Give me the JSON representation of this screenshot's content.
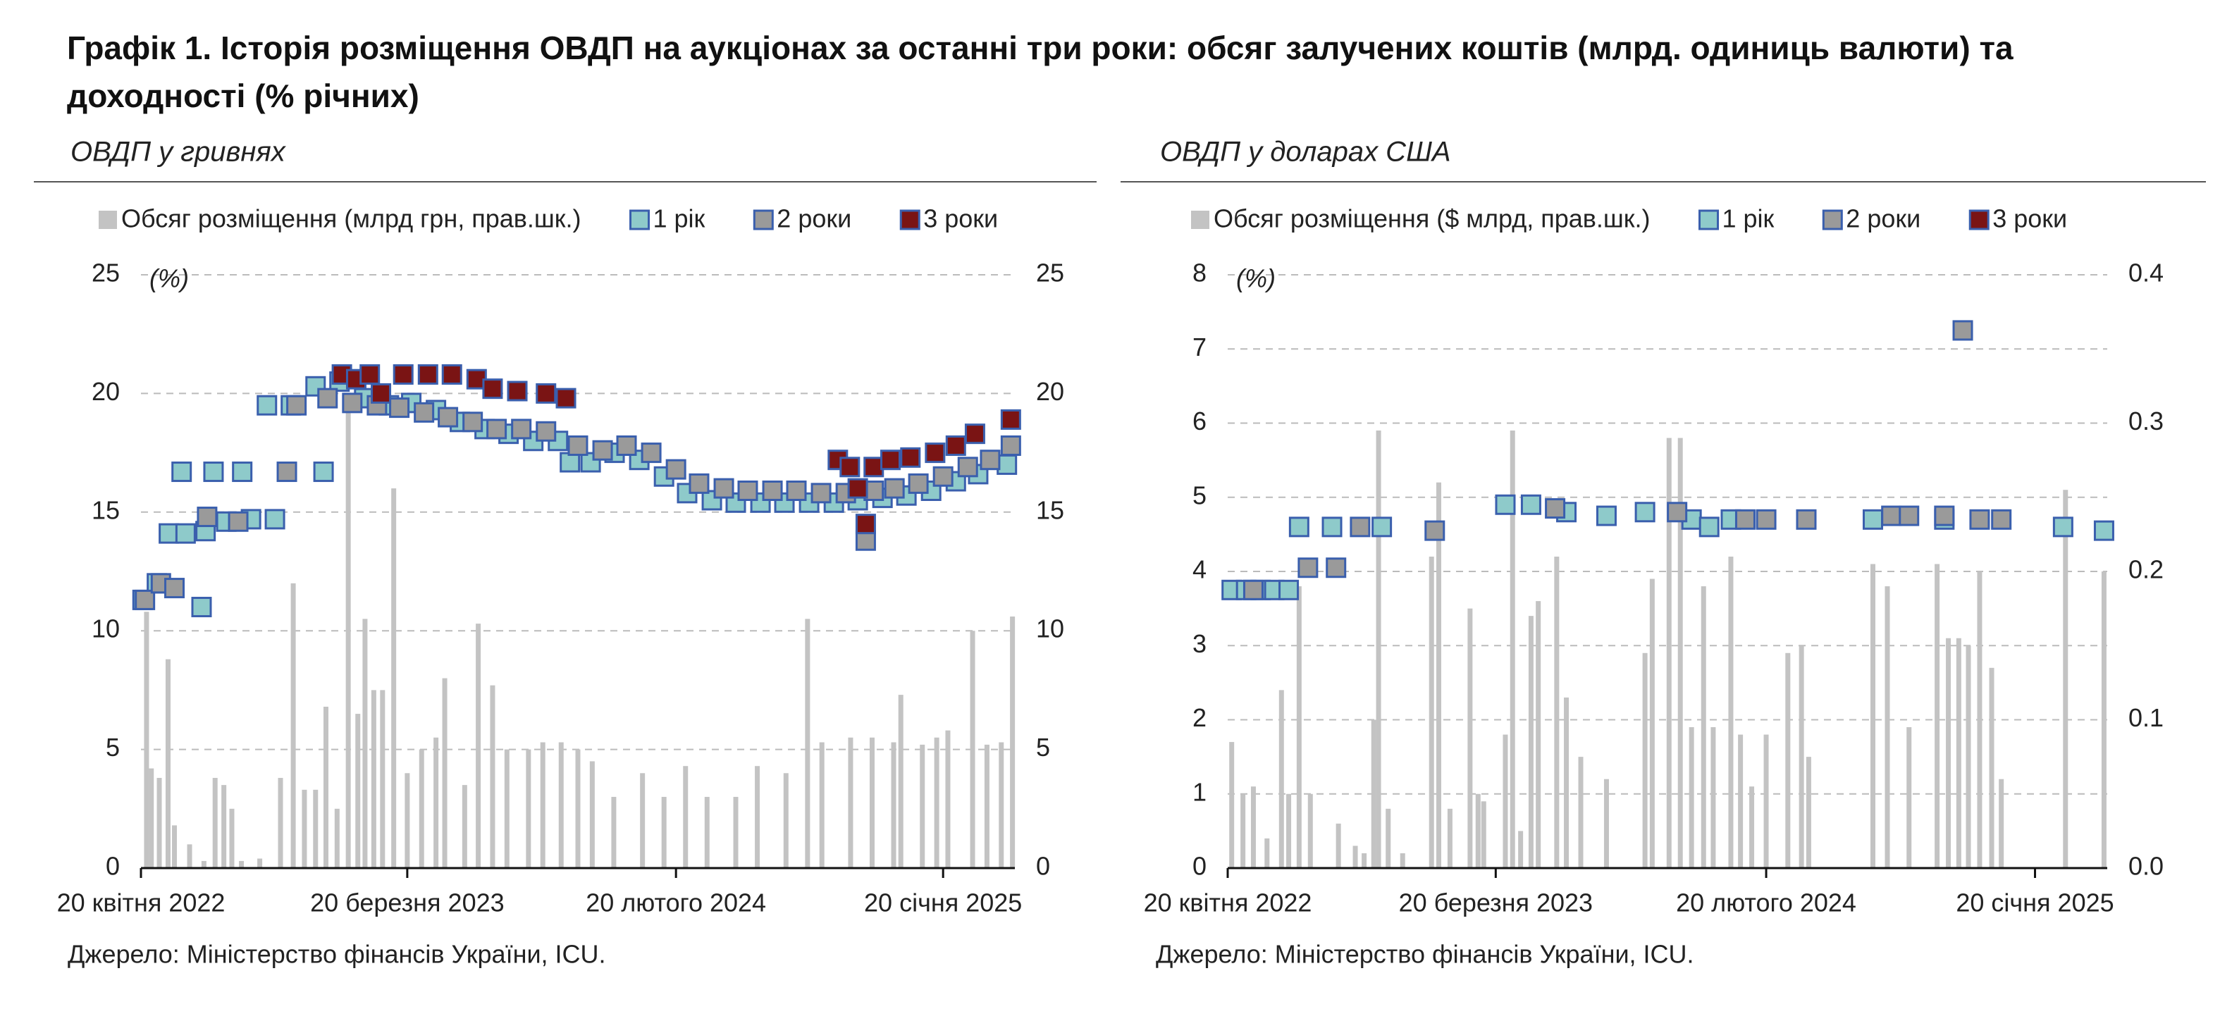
{
  "title": "Графік 1. Історія розміщення ОВДП на аукціонах за останні три роки: обсяг залучених коштів (млрд. одиниць валюти) та доходності (% річних)",
  "chart_data": [
    {
      "type": "combo",
      "subtitle": "ОВДП у гривнях",
      "annotation": "(%)",
      "source": "Джерело: Міністерство фінансів України, ICU.",
      "xlim": [
        "2022-04-20",
        "2025-04-20"
      ],
      "xticks": [
        {
          "value": "2022-04-20",
          "label": "20 квітня 2022"
        },
        {
          "value": "2023-03-20",
          "label": "20 березня 2023"
        },
        {
          "value": "2024-02-20",
          "label": "20 лютого 2024"
        },
        {
          "value": "2025-01-20",
          "label": "20 січня 2025"
        }
      ],
      "ylim": [
        0,
        25
      ],
      "yticks": [
        0,
        5,
        10,
        15,
        20,
        25
      ],
      "y2lim": [
        0,
        25
      ],
      "y2ticks": [
        0,
        5,
        10,
        15,
        20,
        25
      ],
      "grid": true,
      "edgecolor": "#3a5fad",
      "series": [
        {
          "name": "Обсяг розміщення (млрд грн, прав.шк.)",
          "type": "bar",
          "axis": "y2",
          "color": "#c3c3c3",
          "x": [
            "2022-04-27",
            "2022-05-03",
            "2022-05-13",
            "2022-05-24",
            "2022-06-01",
            "2022-06-20",
            "2022-07-08",
            "2022-07-22",
            "2022-08-02",
            "2022-08-12",
            "2022-08-24",
            "2022-09-16",
            "2022-10-12",
            "2022-10-28",
            "2022-11-11",
            "2022-11-25",
            "2022-12-08",
            "2022-12-22",
            "2023-01-05",
            "2023-01-17",
            "2023-01-26",
            "2023-02-06",
            "2023-02-17",
            "2023-03-03",
            "2023-03-20",
            "2023-04-07",
            "2023-04-25",
            "2023-05-06",
            "2023-05-31",
            "2023-06-17",
            "2023-07-05",
            "2023-07-23",
            "2023-08-19",
            "2023-09-06",
            "2023-09-29",
            "2023-10-20",
            "2023-11-07",
            "2023-12-04",
            "2024-01-09",
            "2024-02-05",
            "2024-03-03",
            "2024-03-30",
            "2024-05-05",
            "2024-06-01",
            "2024-07-07",
            "2024-08-03",
            "2024-08-21",
            "2024-09-26",
            "2024-10-23",
            "2024-11-19",
            "2024-11-28",
            "2024-12-25",
            "2025-01-12",
            "2025-01-26",
            "2025-02-26",
            "2025-03-16",
            "2025-04-03",
            "2025-04-17"
          ],
          "values": [
            10.8,
            4.2,
            3.8,
            8.8,
            1.8,
            1.0,
            0.3,
            3.8,
            3.5,
            2.5,
            0.3,
            0.4,
            3.8,
            12.0,
            3.3,
            3.3,
            6.8,
            2.5,
            20.0,
            6.5,
            10.5,
            7.5,
            7.5,
            16.0,
            4.0,
            5.0,
            5.5,
            8.0,
            3.5,
            10.3,
            7.7,
            5.0,
            5.0,
            5.3,
            5.3,
            5.0,
            4.5,
            3.0,
            4.0,
            3.0,
            4.3,
            3.0,
            3.0,
            4.3,
            4.0,
            10.5,
            5.3,
            5.5,
            5.5,
            5.3,
            7.3,
            5.2,
            5.5,
            5.8,
            10.0,
            5.2,
            5.3,
            10.6
          ]
        },
        {
          "name": "1 рік",
          "type": "scatter",
          "color": "#8ecaca",
          "x": [
            "2022-04-22",
            "2022-05-10",
            "2022-05-25",
            "2022-06-10",
            "2022-06-15",
            "2022-07-05",
            "2022-07-10",
            "2022-07-20",
            "2022-08-05",
            "2022-08-25",
            "2022-09-05",
            "2022-09-25",
            "2022-10-05",
            "2022-10-25",
            "2022-11-25",
            "2022-12-05",
            "2022-12-25",
            "2023-01-25",
            "2023-02-25",
            "2023-03-25",
            "2023-04-25",
            "2023-05-25",
            "2023-06-25",
            "2023-07-25",
            "2023-08-25",
            "2023-09-25",
            "2023-10-10",
            "2023-11-05",
            "2023-12-05",
            "2024-01-05",
            "2024-02-05",
            "2024-03-05",
            "2024-04-05",
            "2024-05-05",
            "2024-06-05",
            "2024-07-05",
            "2024-08-05",
            "2024-09-05",
            "2024-10-05",
            "2024-11-05",
            "2024-12-05",
            "2025-01-05",
            "2025-02-05",
            "2025-03-05",
            "2025-04-10"
          ],
          "values": [
            11.3,
            12.0,
            14.1,
            16.7,
            14.1,
            11.0,
            14.2,
            16.7,
            14.6,
            16.7,
            14.7,
            19.5,
            14.7,
            19.5,
            20.3,
            16.7,
            20.5,
            19.8,
            19.5,
            19.6,
            19.3,
            18.8,
            18.5,
            18.3,
            18.0,
            18.0,
            17.1,
            17.1,
            17.5,
            17.2,
            16.5,
            15.8,
            15.5,
            15.4,
            15.4,
            15.4,
            15.4,
            15.4,
            15.5,
            15.6,
            15.7,
            15.9,
            16.3,
            16.6,
            17.0
          ]
        },
        {
          "name": "2 роки",
          "type": "scatter",
          "color": "#9a9a9a",
          "x": [
            "2022-04-25",
            "2022-05-15",
            "2022-06-01",
            "2022-07-12",
            "2022-08-20",
            "2022-10-20",
            "2022-11-01",
            "2022-12-10",
            "2023-01-10",
            "2023-02-10",
            "2023-03-10",
            "2023-04-10",
            "2023-05-10",
            "2023-06-10",
            "2023-07-10",
            "2023-08-10",
            "2023-09-10",
            "2023-10-20",
            "2023-11-20",
            "2023-12-20",
            "2024-01-20",
            "2024-02-20",
            "2024-03-20",
            "2024-04-20",
            "2024-05-20",
            "2024-06-20",
            "2024-07-20",
            "2024-08-20",
            "2024-09-20",
            "2024-10-15",
            "2024-10-25",
            "2024-11-20",
            "2024-12-20",
            "2025-01-20",
            "2025-02-20",
            "2025-03-20",
            "2025-04-15"
          ],
          "values": [
            11.3,
            12.0,
            11.8,
            14.8,
            14.6,
            16.7,
            19.5,
            19.8,
            19.6,
            19.5,
            19.4,
            19.2,
            19.0,
            18.8,
            18.5,
            18.5,
            18.4,
            17.8,
            17.6,
            17.8,
            17.5,
            16.8,
            16.2,
            16.0,
            15.9,
            15.9,
            15.9,
            15.8,
            15.8,
            13.8,
            15.9,
            16.0,
            16.2,
            16.5,
            16.9,
            17.2,
            17.8
          ]
        },
        {
          "name": "3 роки",
          "type": "scatter",
          "color": "#7a1414",
          "x": [
            "2022-12-28",
            "2023-01-15",
            "2023-02-01",
            "2023-02-15",
            "2023-03-15",
            "2023-04-15",
            "2023-05-15",
            "2023-06-15",
            "2023-07-05",
            "2023-08-05",
            "2023-09-10",
            "2023-10-05",
            "2024-09-10",
            "2024-09-25",
            "2024-10-05",
            "2024-10-15",
            "2024-10-25",
            "2024-11-15",
            "2024-12-10",
            "2025-01-10",
            "2025-02-05",
            "2025-03-01",
            "2025-04-15"
          ],
          "values": [
            20.8,
            20.6,
            20.8,
            20.0,
            20.8,
            20.8,
            20.8,
            20.6,
            20.2,
            20.1,
            20.0,
            19.8,
            17.2,
            16.9,
            16.0,
            14.5,
            16.9,
            17.2,
            17.3,
            17.5,
            17.8,
            18.3,
            18.9
          ]
        }
      ]
    },
    {
      "type": "combo",
      "subtitle": "ОВДП у доларах США",
      "annotation": "(%)",
      "source": "Джерело: Міністерство фінансів України, ICU.",
      "xlim": [
        "2022-04-20",
        "2025-04-20"
      ],
      "xticks": [
        {
          "value": "2022-04-20",
          "label": "20 квітня 2022"
        },
        {
          "value": "2023-03-20",
          "label": "20 березня 2023"
        },
        {
          "value": "2024-02-20",
          "label": "20 лютого 2024"
        },
        {
          "value": "2025-01-20",
          "label": "20 січня 2025"
        }
      ],
      "ylim": [
        0,
        8
      ],
      "yticks": [
        0,
        1,
        2,
        3,
        4,
        5,
        6,
        7,
        8
      ],
      "y2lim": [
        0,
        0.4
      ],
      "y2ticks": [
        {
          "value": 0,
          "label": "0.0"
        },
        0.1,
        0.2,
        0.3,
        0.4
      ],
      "grid": true,
      "edgecolor": "#3a5fad",
      "series": [
        {
          "name": "Обсяг розміщення ($ млрд, прав.шк.)",
          "type": "bar",
          "axis": "y2",
          "color": "#c3c3c3",
          "x": [
            "2022-04-25",
            "2022-05-09",
            "2022-05-22",
            "2022-06-08",
            "2022-06-26",
            "2022-07-05",
            "2022-07-18",
            "2022-08-01",
            "2022-09-05",
            "2022-09-26",
            "2022-10-07",
            "2022-10-19",
            "2022-10-25",
            "2022-11-06",
            "2022-11-24",
            "2022-12-30",
            "2023-01-08",
            "2023-01-22",
            "2023-02-16",
            "2023-02-26",
            "2023-03-05",
            "2023-04-01",
            "2023-04-10",
            "2023-04-20",
            "2023-05-03",
            "2023-05-12",
            "2023-06-04",
            "2023-06-16",
            "2023-07-04",
            "2023-08-05",
            "2023-09-22",
            "2023-10-01",
            "2023-10-22",
            "2023-11-05",
            "2023-11-19",
            "2023-12-04",
            "2023-12-16",
            "2024-01-07",
            "2024-01-19",
            "2024-02-02",
            "2024-02-20",
            "2024-03-18",
            "2024-04-04",
            "2024-04-13",
            "2024-07-02",
            "2024-07-20",
            "2024-08-16",
            "2024-09-20",
            "2024-10-04",
            "2024-10-17",
            "2024-10-29",
            "2024-11-12",
            "2024-11-27",
            "2024-12-09",
            "2025-02-27",
            "2025-04-16"
          ],
          "values": [
            0.085,
            0.05,
            0.055,
            0.02,
            0.12,
            0.05,
            0.19,
            0.05,
            0.03,
            0.015,
            0.01,
            0.1,
            0.295,
            0.04,
            0.01,
            0.21,
            0.26,
            0.04,
            0.175,
            0.05,
            0.045,
            0.09,
            0.295,
            0.025,
            0.17,
            0.18,
            0.21,
            0.115,
            0.075,
            0.06,
            0.145,
            0.195,
            0.29,
            0.29,
            0.095,
            0.19,
            0.095,
            0.21,
            0.09,
            0.055,
            0.09,
            0.145,
            0.15,
            0.075,
            0.205,
            0.19,
            0.095,
            0.205,
            0.155,
            0.155,
            0.15,
            0.2,
            0.135,
            0.06,
            0.255,
            0.2
          ]
        },
        {
          "name": "1 рік",
          "type": "scatter",
          "color": "#8ecaca",
          "x": [
            "2022-04-25",
            "2022-05-13",
            "2022-05-31",
            "2022-06-17",
            "2022-07-05",
            "2022-07-18",
            "2022-08-28",
            "2022-10-29",
            "2023-04-01",
            "2023-05-03",
            "2023-06-16",
            "2023-08-05",
            "2023-09-22",
            "2023-11-19",
            "2023-12-11",
            "2024-01-07",
            "2024-07-02",
            "2024-09-29",
            "2025-02-24",
            "2025-04-16"
          ],
          "values": [
            3.75,
            3.75,
            3.75,
            3.75,
            3.75,
            4.6,
            4.6,
            4.6,
            4.9,
            4.9,
            4.8,
            4.75,
            4.8,
            4.7,
            4.6,
            4.7,
            4.7,
            4.7,
            4.6,
            4.55
          ]
        },
        {
          "name": "2 роки",
          "type": "scatter",
          "color": "#9a9a9a",
          "x": [
            "2022-05-22",
            "2022-07-29",
            "2022-09-02",
            "2022-10-02",
            "2023-01-03",
            "2023-06-02",
            "2023-11-01",
            "2024-01-25",
            "2024-02-20",
            "2024-04-10",
            "2024-07-25",
            "2024-08-16",
            "2024-09-29",
            "2024-10-22",
            "2024-11-12",
            "2024-12-09"
          ],
          "values": [
            3.75,
            4.05,
            4.05,
            4.6,
            4.55,
            4.85,
            4.8,
            4.7,
            4.7,
            4.7,
            4.75,
            4.75,
            4.75,
            7.25,
            4.7,
            4.7
          ]
        },
        {
          "name": "3 роки",
          "type": "scatter",
          "color": "#7a1414",
          "x": [],
          "values": []
        }
      ]
    }
  ]
}
